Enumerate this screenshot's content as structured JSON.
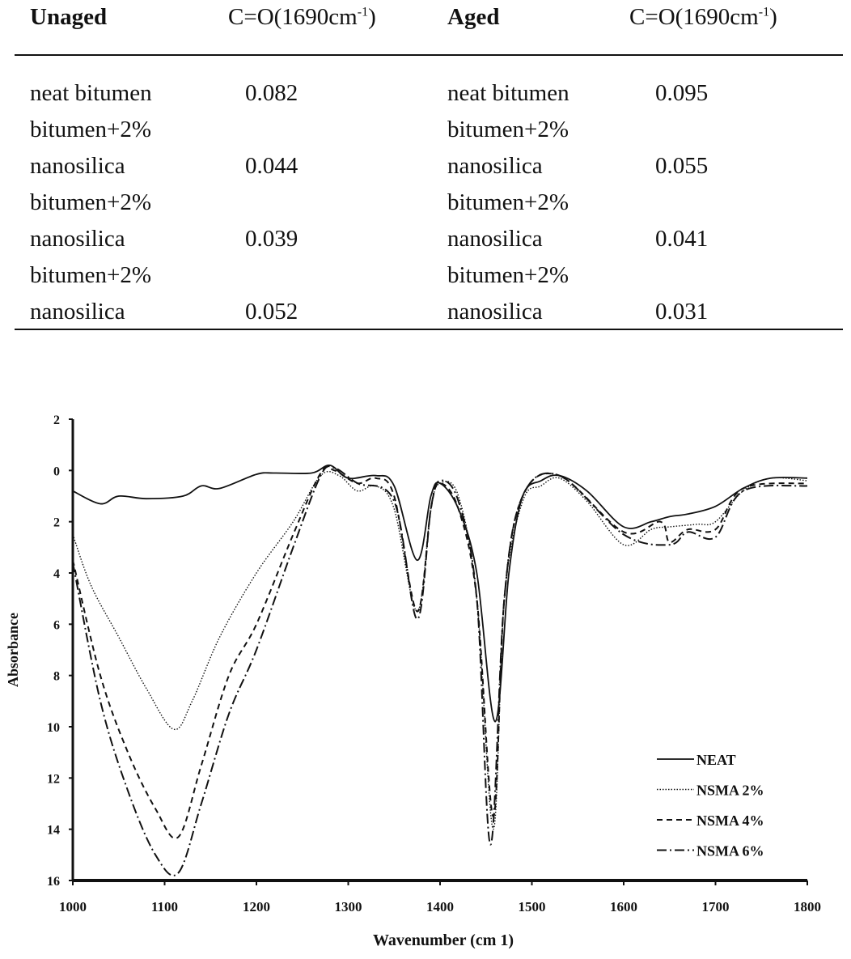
{
  "table": {
    "headers": [
      {
        "label": "Unaged"
      },
      {
        "label": "C=O(1690cm",
        "sup": "-1",
        "close": ")"
      },
      {
        "label": "Aged"
      },
      {
        "label": "C=O(1690cm",
        "sup": "-1",
        "close": ")"
      }
    ],
    "rows": [
      {
        "unaged_label": "neat bitumen",
        "unaged_value": "0.082",
        "aged_label": "neat bitumen",
        "aged_value": "0.095"
      },
      {
        "unaged_label": "bitumen+2%\nnanosilica",
        "unaged_value": "0.044",
        "aged_label": "bitumen+2%\nnanosilica",
        "aged_value": "0.055"
      },
      {
        "unaged_label": "bitumen+2%\nnanosilica",
        "unaged_value": "0.039",
        "aged_label": "bitumen+2%\nnanosilica",
        "aged_value": "0.041"
      },
      {
        "unaged_label": "bitumen+2%\nnanosilica",
        "unaged_value": "0.052",
        "aged_label": "bitumen+2%\nnanosilica",
        "aged_value": "0.031"
      }
    ]
  },
  "chart_data": {
    "type": "line",
    "title": "",
    "xlabel": "Wavenumber (cm 1)",
    "ylabel": "Absorbance",
    "xlim": [
      1000,
      1800
    ],
    "ylim": [
      -2,
      16
    ],
    "y_inverted": true,
    "xticks": [
      "1000",
      "1100",
      "1200",
      "1300",
      "1400",
      "1500",
      "1600",
      "1700",
      "1800"
    ],
    "yticks": [
      {
        "v": -2,
        "label": "2"
      },
      {
        "v": 0,
        "label": "0"
      },
      {
        "v": 2,
        "label": "2"
      },
      {
        "v": 4,
        "label": "4"
      },
      {
        "v": 6,
        "label": "6"
      },
      {
        "v": 8,
        "label": "8"
      },
      {
        "v": 10,
        "label": "10"
      },
      {
        "v": 12,
        "label": "12"
      },
      {
        "v": 14,
        "label": "14"
      },
      {
        "v": 16,
        "label": "16"
      }
    ],
    "legend_position": "bottom-right",
    "series": [
      {
        "name": "NEAT",
        "dash": "solid",
        "x": [
          1000,
          1030,
          1050,
          1080,
          1120,
          1140,
          1160,
          1200,
          1220,
          1260,
          1280,
          1300,
          1330,
          1350,
          1375,
          1390,
          1400,
          1420,
          1440,
          1460,
          1475,
          1490,
          1510,
          1530,
          1560,
          1600,
          1630,
          1650,
          1670,
          1700,
          1730,
          1760,
          1800
        ],
        "y": [
          0.8,
          1.3,
          1.0,
          1.1,
          1.0,
          0.6,
          0.7,
          0.15,
          0.1,
          0.1,
          -0.2,
          0.3,
          0.2,
          0.6,
          3.5,
          1.0,
          0.5,
          1.5,
          4.0,
          9.8,
          4.0,
          1.0,
          0.4,
          0.2,
          0.8,
          2.2,
          2.0,
          1.8,
          1.7,
          1.4,
          0.7,
          0.3,
          0.3
        ]
      },
      {
        "name": "NSMA 2%",
        "dash": "dotted",
        "x": [
          1000,
          1020,
          1050,
          1080,
          1110,
          1130,
          1160,
          1200,
          1240,
          1270,
          1290,
          1310,
          1330,
          1350,
          1375,
          1390,
          1400,
          1420,
          1440,
          1458,
          1470,
          1490,
          1510,
          1530,
          1560,
          1600,
          1630,
          1650,
          1680,
          1700,
          1730,
          1760,
          1800
        ],
        "y": [
          2.5,
          4.5,
          6.5,
          8.5,
          10.1,
          9.0,
          6.5,
          4.0,
          2.0,
          0.2,
          0.2,
          0.8,
          0.6,
          1.5,
          5.5,
          1.5,
          0.5,
          1.0,
          5.0,
          14.0,
          5.0,
          1.2,
          0.6,
          0.3,
          1.2,
          2.9,
          2.3,
          2.2,
          2.1,
          2.0,
          0.8,
          0.3,
          0.4
        ]
      },
      {
        "name": "NSMA 4%",
        "dash": "dashed",
        "x": [
          1000,
          1030,
          1060,
          1090,
          1115,
          1140,
          1170,
          1200,
          1240,
          1270,
          1285,
          1310,
          1330,
          1350,
          1375,
          1390,
          1400,
          1420,
          1440,
          1458,
          1470,
          1490,
          1530,
          1600,
          1640,
          1650,
          1670,
          1700,
          1730,
          1800
        ],
        "y": [
          3.5,
          8.0,
          11.0,
          13.2,
          14.3,
          11.5,
          8.0,
          6.0,
          2.5,
          0.1,
          0.0,
          0.5,
          0.3,
          1.0,
          5.5,
          1.5,
          0.5,
          1.5,
          5.0,
          13.5,
          5.0,
          1.0,
          0.2,
          2.4,
          2.0,
          2.8,
          2.3,
          2.3,
          0.7,
          0.5
        ]
      },
      {
        "name": "NSMA 6%",
        "dash": "dash-dot",
        "x": [
          1000,
          1030,
          1060,
          1090,
          1115,
          1140,
          1170,
          1200,
          1240,
          1270,
          1285,
          1310,
          1350,
          1375,
          1390,
          1400,
          1420,
          1440,
          1455,
          1470,
          1490,
          1530,
          1600,
          1650,
          1670,
          1700,
          1730,
          1800
        ],
        "y": [
          3.6,
          9.0,
          12.5,
          15.0,
          15.7,
          13.0,
          9.5,
          7.0,
          3.0,
          0.2,
          -0.1,
          0.5,
          1.2,
          5.8,
          1.5,
          0.4,
          1.2,
          5.0,
          14.6,
          5.0,
          1.0,
          0.2,
          2.5,
          2.9,
          2.4,
          2.6,
          0.8,
          0.6
        ]
      }
    ]
  }
}
